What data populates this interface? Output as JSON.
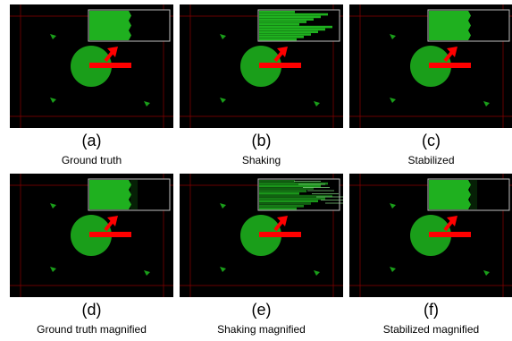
{
  "panels": [
    {
      "letter": "(a)",
      "caption": "Ground truth",
      "inset": "ground-truth"
    },
    {
      "letter": "(b)",
      "caption": "Shaking",
      "inset": "shaking"
    },
    {
      "letter": "(c)",
      "caption": "Stabilized",
      "inset": "stabilized"
    },
    {
      "letter": "(d)",
      "caption": "Ground truth magnified",
      "inset": "ground-truth-magnified"
    },
    {
      "letter": "(e)",
      "caption": "Shaking magnified",
      "inset": "shaking-magnified"
    },
    {
      "letter": "(f)",
      "caption": "Stabilized magnified",
      "inset": "stabilized-magnified"
    }
  ],
  "colors": {
    "background": "#000000",
    "circle": "#1a9e1a",
    "inset_fill": "#1fb01f",
    "inset_border": "#bfbfbf",
    "arrow": "#ff0000",
    "guide_lines": "#8b0000",
    "triangle": "#1a9e1a"
  }
}
